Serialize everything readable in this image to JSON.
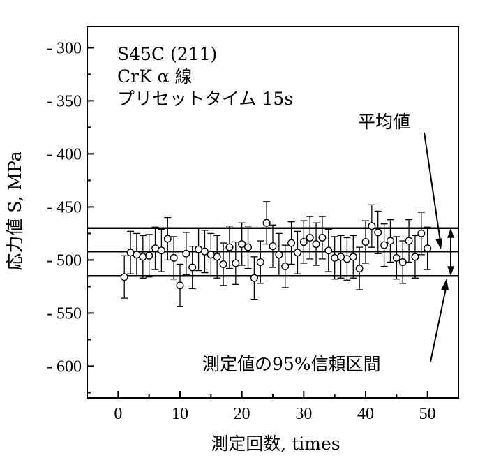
{
  "chart_data": {
    "type": "scatter",
    "xlabel": "測定回数, times",
    "ylabel": "応力値 S, MPa",
    "xlim": [
      -5,
      55
    ],
    "ylim": [
      -630,
      -280
    ],
    "x_ticks": [
      0,
      10,
      20,
      30,
      40,
      50
    ],
    "x_tick_labels": [
      "0",
      "10",
      "20",
      "30",
      "40",
      "50"
    ],
    "y_ticks": [
      -300,
      -350,
      -400,
      -450,
      -500,
      -550,
      -600
    ],
    "y_tick_labels": [
      "- 300",
      "- 350",
      "- 400",
      "- 450",
      "- 500",
      "- 550",
      "- 600"
    ],
    "grid": false,
    "legend_text": [
      "S45C (211)",
      "CrK α 線",
      "プリセットタイム 15s"
    ],
    "annotations": {
      "mean_label": "平均値",
      "ci_label": "測定値の95%信頼区間"
    },
    "reference_lines": {
      "mean": -492,
      "upper_ci": -470,
      "lower_ci": -515
    },
    "error_bar": 20,
    "x": [
      1,
      2,
      3,
      4,
      5,
      6,
      7,
      8,
      9,
      10,
      11,
      12,
      13,
      14,
      15,
      16,
      17,
      18,
      19,
      20,
      21,
      22,
      23,
      24,
      25,
      26,
      27,
      28,
      29,
      30,
      31,
      32,
      33,
      34,
      35,
      36,
      37,
      38,
      39,
      40,
      41,
      42,
      43,
      44,
      45,
      46,
      47,
      48,
      49,
      50
    ],
    "y": [
      -516,
      -493,
      -495,
      -497,
      -496,
      -489,
      -491,
      -480,
      -498,
      -524,
      -494,
      -507,
      -490,
      -492,
      -495,
      -497,
      -504,
      -488,
      -503,
      -485,
      -488,
      -517,
      -502,
      -465,
      -487,
      -495,
      -506,
      -484,
      -493,
      -483,
      -479,
      -485,
      -479,
      -491,
      -498,
      -497,
      -499,
      -497,
      -508,
      -483,
      -468,
      -474,
      -486,
      -482,
      -498,
      -502,
      -482,
      -497,
      -475,
      -489
    ]
  }
}
